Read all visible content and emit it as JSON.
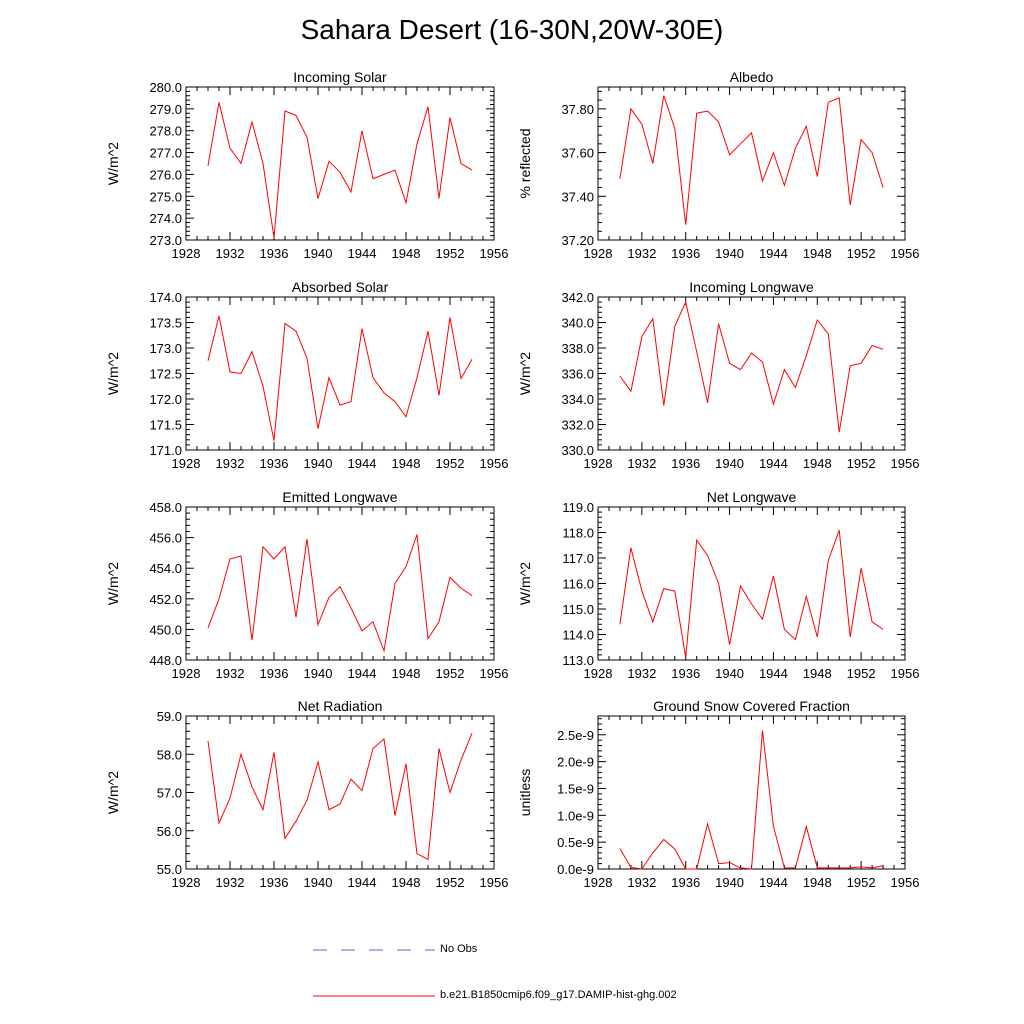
{
  "figure": {
    "title": "Sahara Desert (16-30N,20W-30E)"
  },
  "legend": {
    "entries": [
      {
        "label": "No Obs",
        "color": "#6666cc",
        "style": "dashed"
      },
      {
        "label": "b.e21.B1850cmip6.f09_g17.DAMIP-hist-ghg.002",
        "color": "#ff0000",
        "style": "solid"
      }
    ]
  },
  "chart_data": [
    {
      "type": "line",
      "title": "Incoming Solar",
      "ylabel": "W/m^2",
      "xlim": [
        1928,
        1956
      ],
      "ylim": [
        273.0,
        280.0
      ],
      "x_ticks": [
        1928,
        1932,
        1936,
        1940,
        1944,
        1948,
        1952,
        1956
      ],
      "y_ticks": [
        273.0,
        274.0,
        275.0,
        276.0,
        277.0,
        278.0,
        279.0,
        280.0
      ],
      "y_tick_labels": [
        "273.0",
        "274.0",
        "275.0",
        "276.0",
        "277.0",
        "278.0",
        "279.0",
        "280.0"
      ],
      "x": [
        1930,
        1931,
        1932,
        1933,
        1934,
        1935,
        1936,
        1937,
        1938,
        1939,
        1940,
        1941,
        1942,
        1943,
        1944,
        1945,
        1946,
        1947,
        1948,
        1949,
        1950,
        1951,
        1952,
        1953,
        1954
      ],
      "series": [
        {
          "color": "#ff0000",
          "values": [
            276.4,
            279.3,
            277.2,
            276.5,
            278.4,
            276.5,
            273.1,
            278.9,
            278.7,
            277.7,
            274.9,
            276.6,
            276.1,
            275.2,
            278.0,
            275.8,
            276.0,
            276.2,
            274.7,
            277.4,
            279.1,
            274.9,
            278.6,
            276.5,
            276.2
          ]
        }
      ]
    },
    {
      "type": "line",
      "title": "Albedo",
      "ylabel": "% reflected",
      "xlim": [
        1928,
        1956
      ],
      "ylim": [
        37.2,
        37.9
      ],
      "x_ticks": [
        1928,
        1932,
        1936,
        1940,
        1944,
        1948,
        1952,
        1956
      ],
      "y_ticks": [
        37.2,
        37.4,
        37.6,
        37.8
      ],
      "y_tick_labels": [
        "37.20",
        "37.40",
        "37.60",
        "37.80"
      ],
      "x": [
        1930,
        1931,
        1932,
        1933,
        1934,
        1935,
        1936,
        1937,
        1938,
        1939,
        1940,
        1941,
        1942,
        1943,
        1944,
        1945,
        1946,
        1947,
        1948,
        1949,
        1950,
        1951,
        1952,
        1953,
        1954
      ],
      "series": [
        {
          "color": "#ff0000",
          "values": [
            37.48,
            37.8,
            37.73,
            37.55,
            37.86,
            37.71,
            37.27,
            37.78,
            37.79,
            37.74,
            37.59,
            37.64,
            37.69,
            37.47,
            37.6,
            37.45,
            37.62,
            37.72,
            37.49,
            37.83,
            37.85,
            37.36,
            37.66,
            37.6,
            37.44
          ]
        }
      ]
    },
    {
      "type": "line",
      "title": "Absorbed Solar",
      "ylabel": "W/m^2",
      "xlim": [
        1928,
        1956
      ],
      "ylim": [
        171.0,
        174.0
      ],
      "x_ticks": [
        1928,
        1932,
        1936,
        1940,
        1944,
        1948,
        1952,
        1956
      ],
      "y_ticks": [
        171.0,
        171.5,
        172.0,
        172.5,
        173.0,
        173.5,
        174.0
      ],
      "y_tick_labels": [
        "171.0",
        "171.5",
        "172.0",
        "172.5",
        "173.0",
        "173.5",
        "174.0"
      ],
      "x": [
        1930,
        1931,
        1932,
        1933,
        1934,
        1935,
        1936,
        1937,
        1938,
        1939,
        1940,
        1941,
        1942,
        1943,
        1944,
        1945,
        1946,
        1947,
        1948,
        1949,
        1950,
        1951,
        1952,
        1953,
        1954
      ],
      "series": [
        {
          "color": "#ff0000",
          "values": [
            172.75,
            173.63,
            172.53,
            172.5,
            172.93,
            172.25,
            171.18,
            173.48,
            173.33,
            172.8,
            171.42,
            172.42,
            171.88,
            171.95,
            173.38,
            172.42,
            172.12,
            171.95,
            171.65,
            172.42,
            173.33,
            172.07,
            173.6,
            172.4,
            172.78
          ]
        }
      ]
    },
    {
      "type": "line",
      "title": "Incoming Longwave",
      "ylabel": "W/m^2",
      "xlim": [
        1928,
        1956
      ],
      "ylim": [
        330.0,
        342.0
      ],
      "x_ticks": [
        1928,
        1932,
        1936,
        1940,
        1944,
        1948,
        1952,
        1956
      ],
      "y_ticks": [
        330.0,
        332.0,
        334.0,
        336.0,
        338.0,
        340.0,
        342.0
      ],
      "y_tick_labels": [
        "330.0",
        "332.0",
        "334.0",
        "336.0",
        "338.0",
        "340.0",
        "342.0"
      ],
      "x": [
        1930,
        1931,
        1932,
        1933,
        1934,
        1935,
        1936,
        1937,
        1938,
        1939,
        1940,
        1941,
        1942,
        1943,
        1944,
        1945,
        1946,
        1947,
        1948,
        1949,
        1950,
        1951,
        1952,
        1953,
        1954
      ],
      "series": [
        {
          "color": "#ff0000",
          "values": [
            335.8,
            334.6,
            338.9,
            340.3,
            333.5,
            339.7,
            341.6,
            337.7,
            333.7,
            339.9,
            336.8,
            336.3,
            337.6,
            336.9,
            333.6,
            336.3,
            334.9,
            337.4,
            340.2,
            339.1,
            331.4,
            336.6,
            336.8,
            338.2,
            337.9
          ]
        }
      ]
    },
    {
      "type": "line",
      "title": "Emitted Longwave",
      "ylabel": "W/m^2",
      "xlim": [
        1928,
        1956
      ],
      "ylim": [
        448.0,
        458.0
      ],
      "x_ticks": [
        1928,
        1932,
        1936,
        1940,
        1944,
        1948,
        1952,
        1956
      ],
      "y_ticks": [
        448.0,
        450.0,
        452.0,
        454.0,
        456.0,
        458.0
      ],
      "y_tick_labels": [
        "448.0",
        "450.0",
        "452.0",
        "454.0",
        "456.0",
        "458.0"
      ],
      "x": [
        1930,
        1931,
        1932,
        1933,
        1934,
        1935,
        1936,
        1937,
        1938,
        1939,
        1940,
        1941,
        1942,
        1943,
        1944,
        1945,
        1946,
        1947,
        1948,
        1949,
        1950,
        1951,
        1952,
        1953,
        1954
      ],
      "series": [
        {
          "color": "#ff0000",
          "values": [
            450.1,
            452.0,
            454.6,
            454.8,
            449.3,
            455.4,
            454.6,
            455.4,
            450.8,
            455.9,
            450.3,
            452.1,
            452.8,
            451.4,
            449.9,
            450.5,
            448.6,
            453.0,
            454.1,
            456.2,
            449.4,
            450.5,
            453.4,
            452.7,
            452.2
          ]
        }
      ]
    },
    {
      "type": "line",
      "title": "Net Longwave",
      "ylabel": "W/m^2",
      "xlim": [
        1928,
        1956
      ],
      "ylim": [
        113.0,
        119.0
      ],
      "x_ticks": [
        1928,
        1932,
        1936,
        1940,
        1944,
        1948,
        1952,
        1956
      ],
      "y_ticks": [
        113.0,
        114.0,
        115.0,
        116.0,
        117.0,
        118.0,
        119.0
      ],
      "y_tick_labels": [
        "113.0",
        "114.0",
        "115.0",
        "116.0",
        "117.0",
        "118.0",
        "119.0"
      ],
      "x": [
        1930,
        1931,
        1932,
        1933,
        1934,
        1935,
        1936,
        1937,
        1938,
        1939,
        1940,
        1941,
        1942,
        1943,
        1944,
        1945,
        1946,
        1947,
        1948,
        1949,
        1950,
        1951,
        1952,
        1953,
        1954
      ],
      "series": [
        {
          "color": "#ff0000",
          "values": [
            114.4,
            117.4,
            115.7,
            114.5,
            115.8,
            115.7,
            113.1,
            117.7,
            117.1,
            116.0,
            113.6,
            115.9,
            115.2,
            114.6,
            116.3,
            114.2,
            113.8,
            115.5,
            113.9,
            116.9,
            118.1,
            113.9,
            116.6,
            114.5,
            114.2
          ]
        }
      ]
    },
    {
      "type": "line",
      "title": "Net Radiation",
      "ylabel": "W/m^2",
      "xlim": [
        1928,
        1956
      ],
      "ylim": [
        55.0,
        59.0
      ],
      "x_ticks": [
        1928,
        1932,
        1936,
        1940,
        1944,
        1948,
        1952,
        1956
      ],
      "y_ticks": [
        55.0,
        56.0,
        57.0,
        58.0,
        59.0
      ],
      "y_tick_labels": [
        "55.0",
        "56.0",
        "57.0",
        "58.0",
        "59.0"
      ],
      "x": [
        1930,
        1931,
        1932,
        1933,
        1934,
        1935,
        1936,
        1937,
        1938,
        1939,
        1940,
        1941,
        1942,
        1943,
        1944,
        1945,
        1946,
        1947,
        1948,
        1949,
        1950,
        1951,
        1952,
        1953,
        1954
      ],
      "series": [
        {
          "color": "#ff0000",
          "values": [
            58.35,
            56.2,
            56.85,
            58.0,
            57.15,
            56.55,
            58.05,
            55.8,
            56.25,
            56.8,
            57.8,
            56.55,
            56.7,
            57.35,
            57.05,
            58.15,
            58.4,
            56.4,
            57.75,
            55.4,
            55.25,
            58.15,
            57.0,
            57.85,
            58.55
          ]
        }
      ]
    },
    {
      "type": "line",
      "title": "Ground Snow Covered Fraction",
      "ylabel": "unitless",
      "xlim": [
        1928,
        1956
      ],
      "ylim": [
        0.0,
        2.85e-09
      ],
      "x_ticks": [
        1928,
        1932,
        1936,
        1940,
        1944,
        1948,
        1952,
        1956
      ],
      "y_ticks": [
        0.0,
        5e-10,
        1e-09,
        1.5e-09,
        2e-09,
        2.5e-09
      ],
      "y_tick_labels": [
        "0.0e-9",
        "0.5e-9",
        "1.0e-9",
        "1.5e-9",
        "2.0e-9",
        "2.5e-9"
      ],
      "x": [
        1930,
        1931,
        1932,
        1933,
        1934,
        1935,
        1936,
        1937,
        1938,
        1939,
        1940,
        1941,
        1942,
        1943,
        1944,
        1945,
        1946,
        1947,
        1948,
        1949,
        1950,
        1951,
        1952,
        1953,
        1954
      ],
      "series": [
        {
          "color": "#ff0000",
          "values": [
            3.8e-10,
            3e-11,
            0.0,
            3e-10,
            5.5e-10,
            3.7e-10,
            0.0,
            0.0,
            8.4e-10,
            1e-10,
            1.2e-10,
            2e-11,
            0.0,
            2.58e-09,
            8e-10,
            2e-11,
            2e-11,
            7.9e-10,
            2e-11,
            2e-11,
            2e-11,
            2e-11,
            4e-11,
            2e-11,
            6e-11
          ]
        }
      ]
    }
  ]
}
